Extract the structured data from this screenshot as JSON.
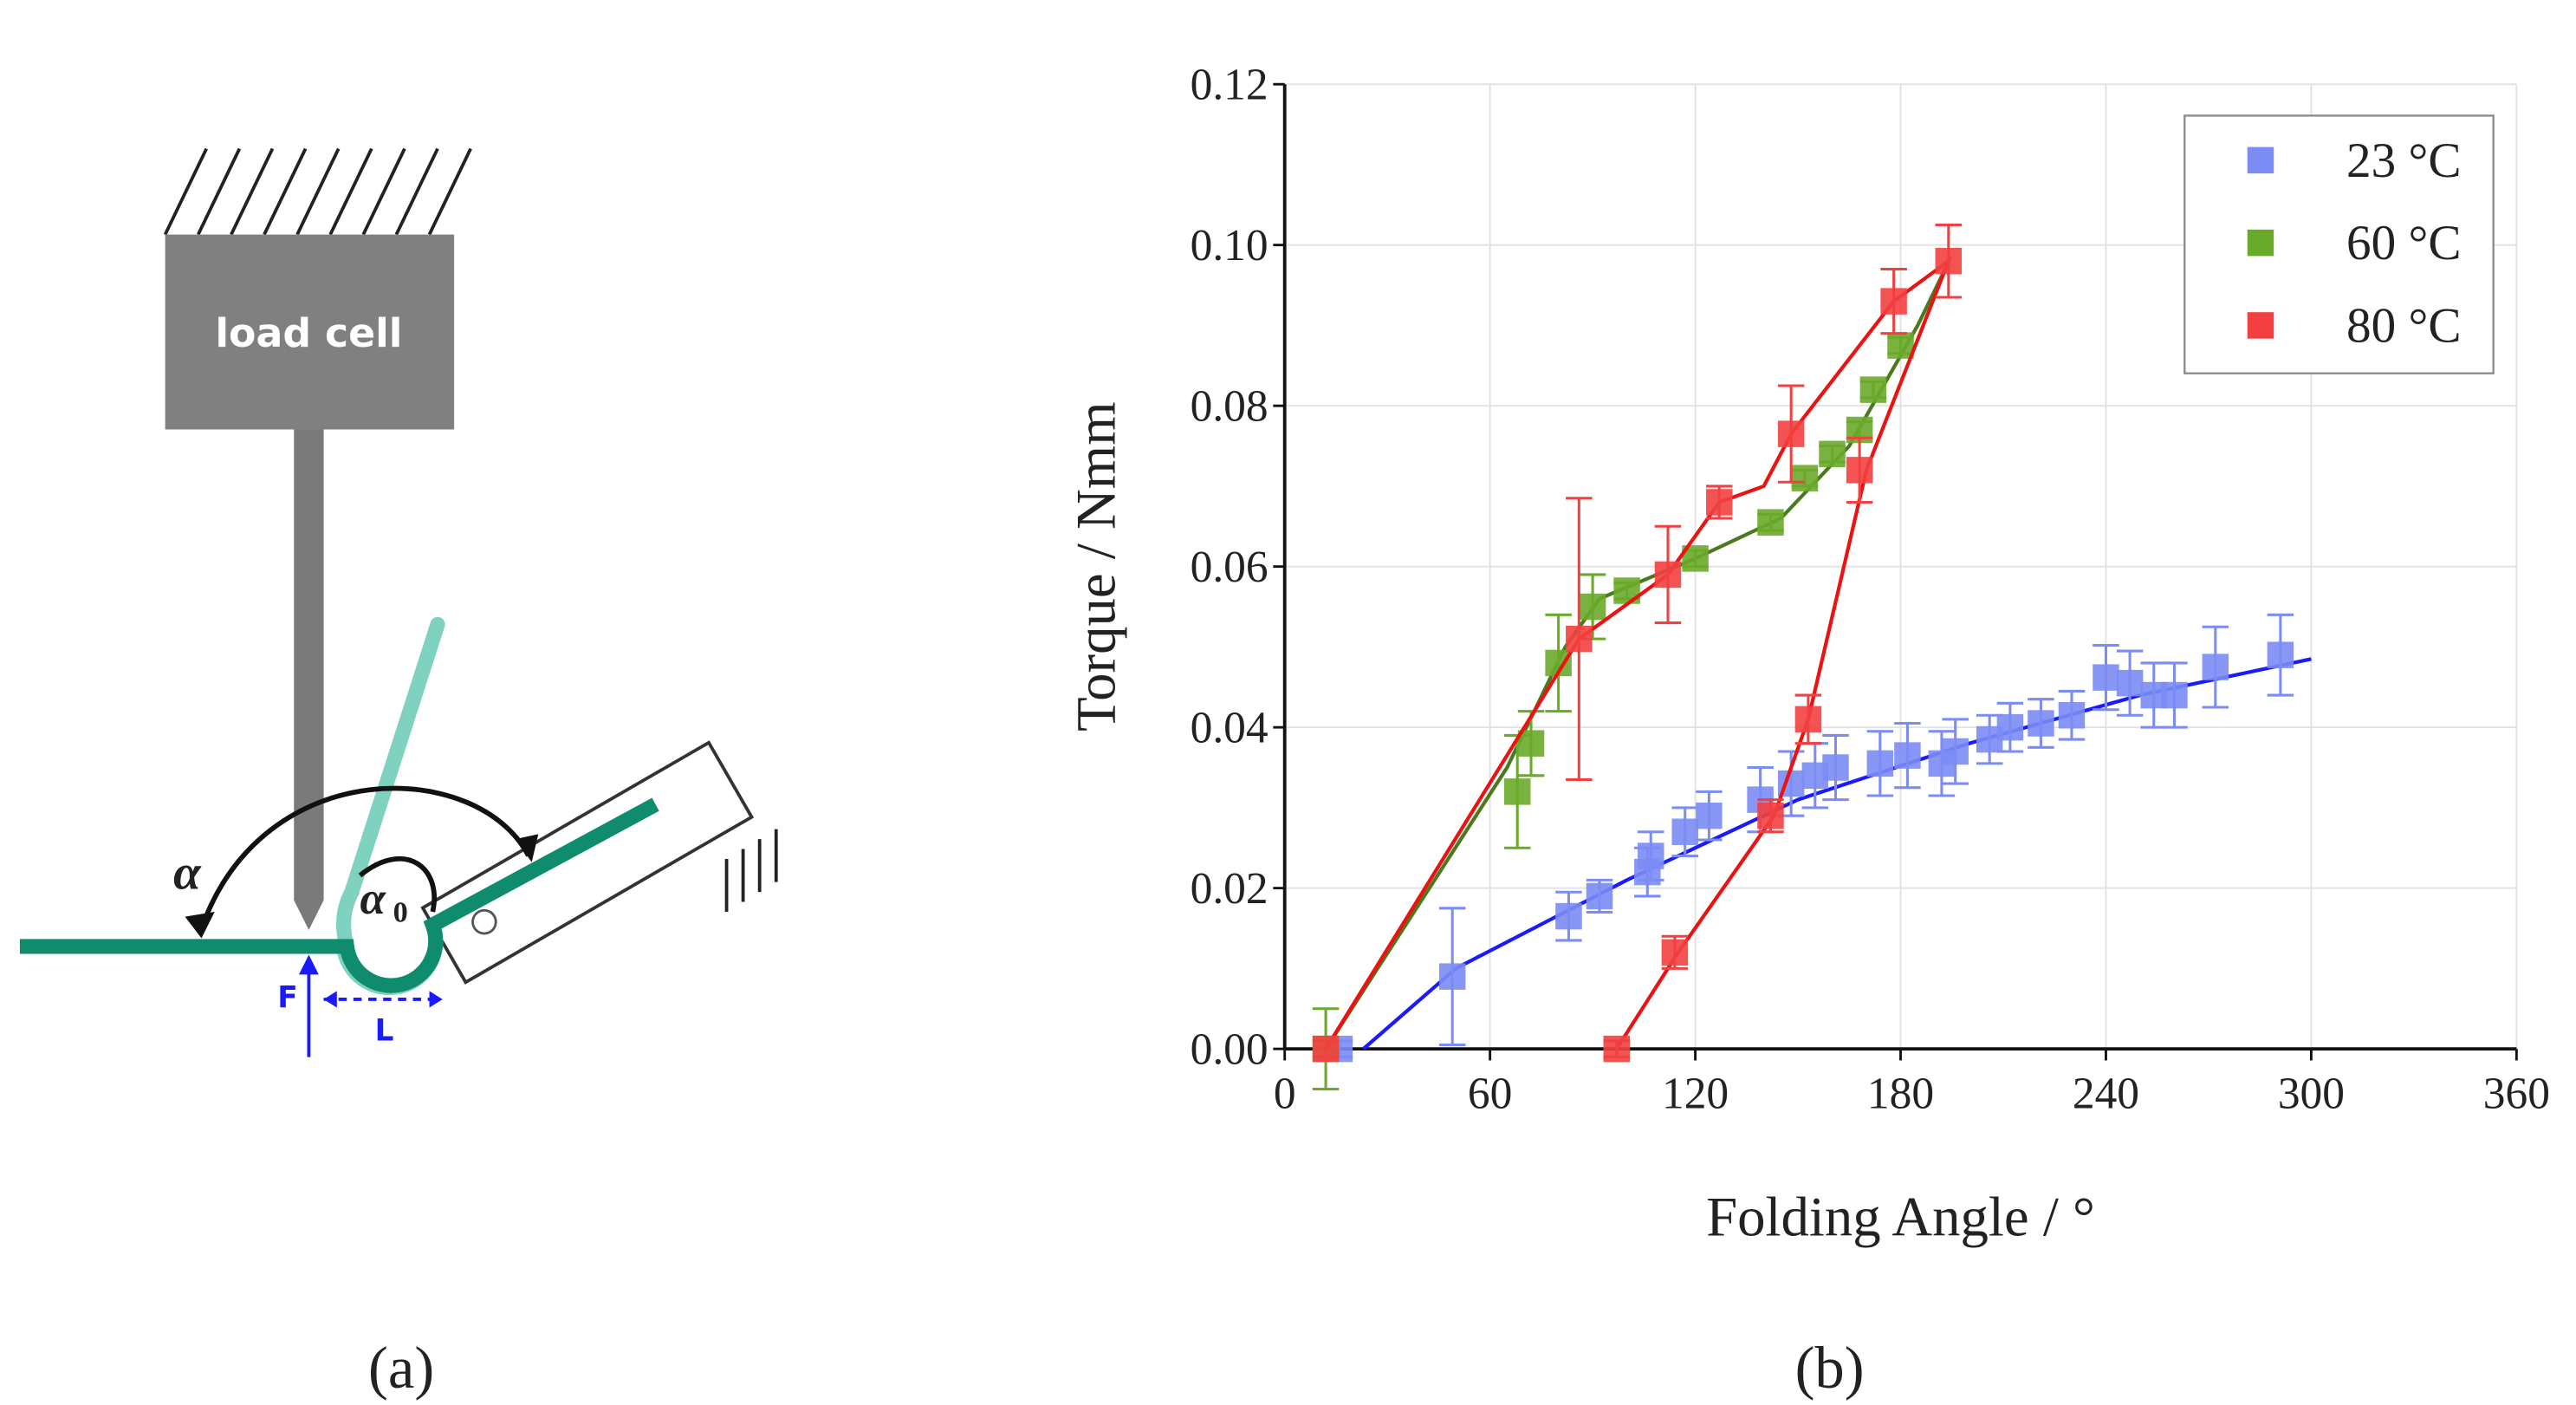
{
  "panel_labels": [
    "(a)",
    "(b)"
  ],
  "diagram": {
    "load_cell": "load cell",
    "alpha": "α",
    "alpha0": {
      "symbol": "α",
      "subscript": "0"
    },
    "force": "F",
    "length": "L"
  },
  "chart_data": {
    "type": "scatter",
    "xlabel": "Folding Angle / °",
    "ylabel": "Torque / Nmm",
    "xlim": [
      0,
      360
    ],
    "ylim": [
      0,
      0.12
    ],
    "xticks": [
      0,
      60,
      120,
      180,
      240,
      300,
      360
    ],
    "yticks": [
      {
        "value": 0,
        "label": "0.00"
      },
      {
        "value": 0.02,
        "label": "0.02"
      },
      {
        "value": 0.04,
        "label": "0.04"
      },
      {
        "value": 0.06,
        "label": "0.06"
      },
      {
        "value": 0.08,
        "label": "0.08"
      },
      {
        "value": 0.1,
        "label": "0.10"
      },
      {
        "value": 0.12,
        "label": "0.12"
      }
    ],
    "grid": true,
    "legend": "upper right",
    "series": [
      {
        "name": "23 °C",
        "color": "#7b8cf5",
        "x": [
          16,
          49,
          83,
          92,
          106,
          107,
          117,
          124,
          139,
          148,
          155,
          161,
          174,
          182,
          192,
          196,
          206,
          212,
          221,
          230,
          240,
          247,
          254,
          260,
          272,
          291
        ],
        "values": [
          0,
          0.009,
          0.0165,
          0.019,
          0.022,
          0.024,
          0.027,
          0.029,
          0.031,
          0.033,
          0.034,
          0.035,
          0.0355,
          0.0365,
          0.0355,
          0.037,
          0.0385,
          0.04,
          0.0405,
          0.0415,
          0.0462,
          0.0455,
          0.044,
          0.044,
          0.0475,
          0.049
        ],
        "errors": [
          0.001,
          0.0085,
          0.003,
          0.002,
          0.003,
          0.003,
          0.003,
          0.003,
          0.004,
          0.004,
          0.004,
          0.004,
          0.004,
          0.004,
          0.004,
          0.004,
          0.003,
          0.003,
          0.003,
          0.003,
          0.004,
          0.004,
          0.004,
          0.004,
          0.005,
          0.005
        ],
        "fit": {
          "color": "#1a1aff",
          "x": [
            23,
            50,
            100,
            150,
            200,
            250,
            300
          ],
          "values": [
            0,
            0.01,
            0.021,
            0.031,
            0.038,
            0.044,
            0.0485
          ]
        }
      },
      {
        "name": "60 °C",
        "color": "#6aaa2a",
        "x": [
          12,
          68,
          72,
          80,
          90,
          100,
          120,
          142,
          152,
          160,
          168,
          172,
          180
        ],
        "values": [
          0,
          0.032,
          0.038,
          0.048,
          0.055,
          0.057,
          0.061,
          0.0655,
          0.071,
          0.074,
          0.077,
          0.082,
          0.0875
        ],
        "errors": [
          0.005,
          0.007,
          0.004,
          0.006,
          0.004,
          0.001,
          0.001,
          0.001,
          0.001,
          0.001,
          0.001,
          0.001,
          0.001
        ],
        "fit": {
          "color": "#4a7a1e",
          "x": [
            12,
            65,
            82,
            92,
            120,
            145,
            165,
            185,
            193
          ],
          "values": [
            0,
            0.035,
            0.05,
            0.056,
            0.061,
            0.066,
            0.075,
            0.09,
            0.097
          ]
        }
      },
      {
        "name": "80 °C",
        "color": "#f24040",
        "x": [
          12,
          86,
          112,
          127,
          148,
          178,
          194,
          168,
          153,
          142,
          114,
          97
        ],
        "values": [
          0,
          0.051,
          0.059,
          0.068,
          0.0765,
          0.093,
          0.098,
          0.072,
          0.041,
          0.029,
          0.012,
          0
        ],
        "errors": [
          0.001,
          0.0175,
          0.006,
          0.002,
          0.006,
          0.004,
          0.0045,
          0.004,
          0.003,
          0.002,
          0.002,
          0.001
        ],
        "fit": {
          "color": "#ee1111",
          "x": [
            12,
            86,
            112,
            127,
            140,
            148,
            178,
            194,
            170,
            153,
            143,
            115,
            97
          ],
          "values": [
            0,
            0.051,
            0.059,
            0.068,
            0.07,
            0.0765,
            0.093,
            0.098,
            0.072,
            0.041,
            0.029,
            0.012,
            0
          ]
        }
      }
    ]
  }
}
